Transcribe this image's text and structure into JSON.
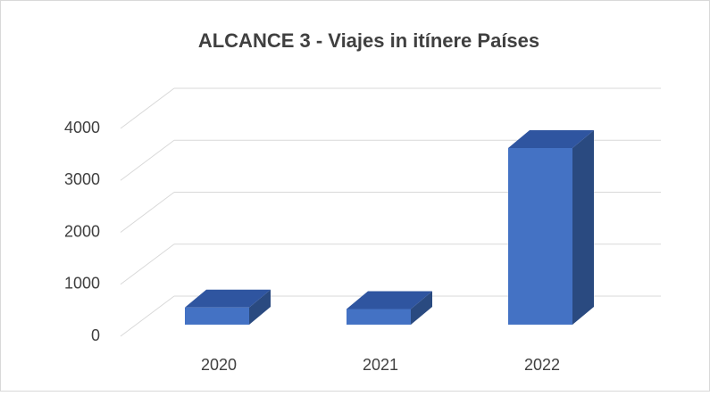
{
  "chart_data": {
    "type": "bar3d",
    "title": "ALCANCE 3 - Viajes in itínere Países",
    "categories": [
      "2020",
      "2021",
      "2022"
    ],
    "values": [
      330,
      300,
      3400
    ],
    "color": "#4472c4",
    "ylim": [
      0,
      4000
    ],
    "yticks": [
      0,
      1000,
      2000,
      3000,
      4000
    ],
    "grid": true
  }
}
